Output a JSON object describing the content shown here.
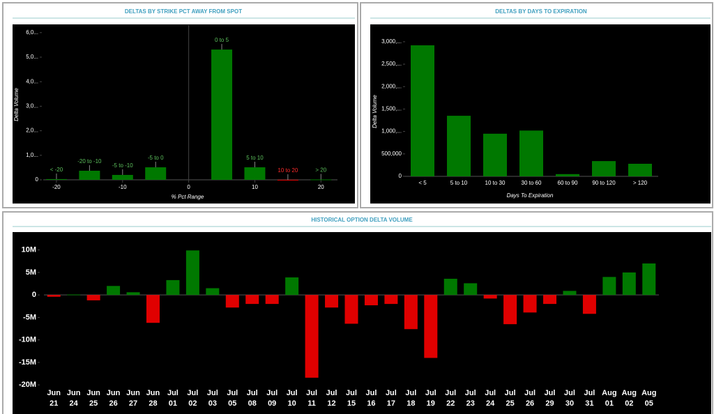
{
  "chart_data": [
    {
      "type": "bar",
      "title": "DELTAS BY STRIKE PCT AWAY FROM SPOT",
      "x_label": "% Pct Range",
      "y_label": "Delta Volume",
      "x": [
        -20,
        -15,
        -10,
        -5,
        5,
        10,
        15,
        20
      ],
      "labels": [
        "< -20",
        "-20 to -10",
        "-5 to -10",
        "-5 to 0",
        "0 to 5",
        "5 to 10",
        "10 to 20",
        "> 20"
      ],
      "values": [
        30000,
        370000,
        200000,
        510000,
        5310000,
        510000,
        -20000,
        15000
      ],
      "xlim": [
        -22,
        22.5
      ],
      "xticks": [
        -20,
        -10,
        0,
        10,
        20
      ],
      "ylim": [
        0,
        6250000
      ],
      "yticks": [
        0,
        {
          "value": 1000000,
          "label": "1,0..."
        },
        {
          "value": 2000000,
          "label": "2,0..."
        },
        {
          "value": 3000000,
          "label": "3,0..."
        },
        {
          "value": 4000000,
          "label": "4,0..."
        },
        {
          "value": 5000000,
          "label": "5,0..."
        },
        {
          "value": 6000000,
          "label": "6,0..."
        }
      ],
      "positive_color": "#007800",
      "negative_color": "#e00000"
    },
    {
      "type": "bar",
      "title": "DELTAS BY DAYS TO EXPIRATION",
      "x_label": "Days To Expiration",
      "y_label": "Delta Volume",
      "categories": [
        "< 5",
        "5 to 10",
        "10 to 30",
        "30 to 60",
        "60 to 90",
        "90 to 120",
        "> 120"
      ],
      "values": [
        2920000,
        1350000,
        950000,
        1020000,
        50000,
        340000,
        280000
      ],
      "ylim": [
        0,
        3200000
      ],
      "yticks": [
        0,
        {
          "value": 500000,
          "label": "500,000"
        },
        {
          "value": 1000000,
          "label": "1,000,..."
        },
        {
          "value": 1500000,
          "label": "1,500,..."
        },
        {
          "value": 2000000,
          "label": "2,000,..."
        },
        {
          "value": 2500000,
          "label": "2,500,..."
        },
        {
          "value": 3000000,
          "label": "3,000,..."
        }
      ],
      "positive_color": "#007800",
      "negative_color": "#e00000"
    },
    {
      "type": "bar",
      "title": "HISTORICAL OPTION DELTA VOLUME",
      "categories": [
        "Jun 21",
        "Jun 24",
        "Jun 25",
        "Jun 26",
        "Jun 27",
        "Jun 28",
        "Jul 01",
        "Jul 02",
        "Jul 03",
        "Jul 05",
        "Jul 08",
        "Jul 09",
        "Jul 10",
        "Jul 11",
        "Jul 12",
        "Jul 15",
        "Jul 16",
        "Jul 17",
        "Jul 18",
        "Jul 19",
        "Jul 22",
        "Jul 23",
        "Jul 24",
        "Jul 25",
        "Jul 26",
        "Jul 29",
        "Jul 30",
        "Jul 31",
        "Aug 01",
        "Aug 02",
        "Aug 05"
      ],
      "values": [
        -400000,
        100000,
        -1200000,
        2000000,
        600000,
        -6200000,
        3300000,
        9900000,
        1500000,
        -2800000,
        -2000000,
        -2000000,
        3900000,
        -18400000,
        -2800000,
        -6400000,
        -2300000,
        -2000000,
        -7600000,
        -14000000,
        3600000,
        2600000,
        -800000,
        -6500000,
        -3900000,
        -2000000,
        900000,
        -4200000,
        4000000,
        5000000,
        7000000
      ],
      "ylim": [
        -21200000,
        13200000
      ],
      "yticks": [
        {
          "value": -20000000,
          "label": "-20M"
        },
        {
          "value": -15000000,
          "label": "-15M"
        },
        {
          "value": -10000000,
          "label": "-10M"
        },
        {
          "value": -5000000,
          "label": "-5M"
        },
        0,
        {
          "value": 5000000,
          "label": "5M"
        },
        {
          "value": 10000000,
          "label": "10M"
        }
      ],
      "positive_color": "#007800",
      "negative_color": "#e00000"
    }
  ]
}
